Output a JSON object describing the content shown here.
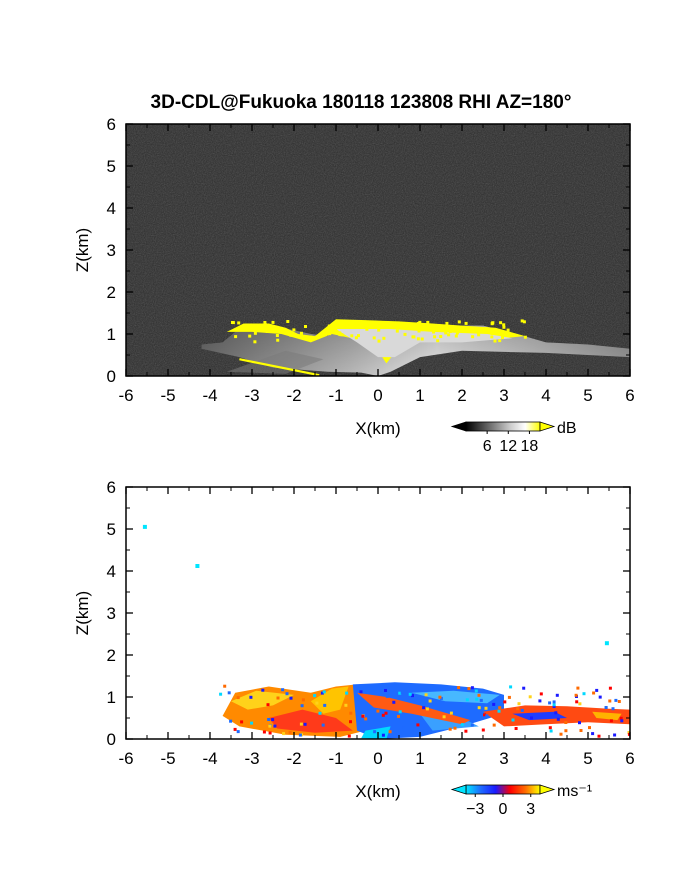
{
  "title": "3D-CDL@Fukuoka 180118 123808 RHI AZ=180°",
  "chart_data": [
    {
      "type": "heatmap",
      "variable": "reflectivity",
      "xlabel": "X(km)",
      "ylabel": "Z(km)",
      "xlim": [
        -6,
        6
      ],
      "ylim": [
        0,
        6
      ],
      "xticks": [
        "-6",
        "-5",
        "-4",
        "-3",
        "-2",
        "-1",
        "0",
        "1",
        "2",
        "3",
        "4",
        "5",
        "6"
      ],
      "yticks": [
        "0",
        "1",
        "2",
        "3",
        "4",
        "5",
        "6"
      ],
      "background": "#2b2b2b",
      "colorbar": {
        "unit": "dB",
        "ticks": [
          "6",
          "12",
          "18"
        ],
        "tick_values": [
          6,
          12,
          18
        ],
        "range": [
          0,
          21
        ],
        "colors": [
          "#000000",
          "#444444",
          "#888888",
          "#cccccc",
          "#ffffff",
          "#ffff00"
        ]
      },
      "features": [
        {
          "name": "echo-layer",
          "x_range": [
            -4.2,
            6.0
          ],
          "z_top": [
            0.65,
            1.25
          ],
          "color": "#bdbdbd"
        },
        {
          "name": "high-echo-top",
          "x_range": [
            -3.6,
            3.6
          ],
          "z_range": [
            0.9,
            1.35
          ],
          "color": "#ffff00"
        }
      ]
    },
    {
      "type": "heatmap",
      "variable": "doppler velocity",
      "xlabel": "X(km)",
      "ylabel": "Z(km)",
      "xlim": [
        -6,
        6
      ],
      "ylim": [
        0,
        6
      ],
      "xticks": [
        "-6",
        "-5",
        "-4",
        "-3",
        "-2",
        "-1",
        "0",
        "1",
        "2",
        "3",
        "4",
        "5",
        "6"
      ],
      "yticks": [
        "0",
        "1",
        "2",
        "3",
        "4",
        "5",
        "6"
      ],
      "background": "#ffffff",
      "colorbar": {
        "unit": "ms⁻¹",
        "ticks": [
          "−3",
          "0",
          "3"
        ],
        "tick_values": [
          -3,
          0,
          3
        ],
        "range": [
          -4,
          4
        ],
        "colors": [
          "#00e5ff",
          "#1e6bff",
          "#1a1aff",
          "#ff0000",
          "#ff6a00",
          "#ffff00"
        ]
      },
      "points": [
        {
          "x": -5.55,
          "z": 5.05,
          "v": -3.5
        },
        {
          "x": -4.3,
          "z": 4.12,
          "v": -3.5
        },
        {
          "x": 5.45,
          "z": 2.28,
          "v": -3.5
        }
      ],
      "features": [
        {
          "name": "approaching-region",
          "x_range": [
            -0.6,
            3.0
          ],
          "z_range": [
            0.0,
            1.3
          ],
          "v": -2
        },
        {
          "name": "receding-region",
          "x_range": [
            -4.2,
            -0.5
          ],
          "z_range": [
            0.0,
            1.3
          ],
          "v": 2
        },
        {
          "name": "receding-low-layer",
          "x_range": [
            2.5,
            6.0
          ],
          "z_range": [
            0.3,
            0.85
          ],
          "v": 1.5
        }
      ]
    }
  ]
}
